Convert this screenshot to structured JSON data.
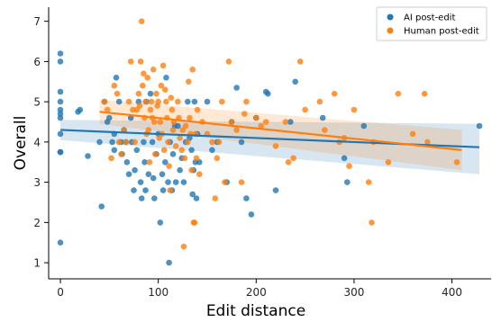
{
  "chart_data": {
    "type": "scatter",
    "xlabel": "Edit distance",
    "ylabel": "Overall",
    "xlim": [
      -12,
      440
    ],
    "ylim": [
      0.6,
      7.35
    ],
    "xticks": [
      0,
      100,
      200,
      300,
      400
    ],
    "yticks": [
      1,
      2,
      3,
      4,
      5,
      6,
      7
    ],
    "legend_position": "top-right",
    "grid": false,
    "series": [
      {
        "name": "AI post-edit",
        "color": "#1f77b4",
        "regression": {
          "x": [
            0,
            428
          ],
          "y": [
            4.3,
            3.87
          ],
          "ci_upper": [
            4.55,
            4.45
          ],
          "ci_lower": [
            4.05,
            3.2
          ]
        },
        "points": [
          [
            0,
            6.2
          ],
          [
            0,
            6.0
          ],
          [
            0,
            5.25
          ],
          [
            0,
            5.0
          ],
          [
            0,
            4.8
          ],
          [
            0,
            4.7
          ],
          [
            0,
            4.6
          ],
          [
            0,
            4.2
          ],
          [
            0,
            3.75
          ],
          [
            0,
            3.75
          ],
          [
            0,
            1.5
          ],
          [
            18,
            4.75
          ],
          [
            20,
            4.8
          ],
          [
            28,
            3.65
          ],
          [
            40,
            4.0
          ],
          [
            42,
            2.4
          ],
          [
            45,
            5.0
          ],
          [
            48,
            4.5
          ],
          [
            50,
            4.6
          ],
          [
            53,
            4.0
          ],
          [
            55,
            4.2
          ],
          [
            55,
            3.8
          ],
          [
            57,
            5.6
          ],
          [
            60,
            5.0
          ],
          [
            62,
            4.0
          ],
          [
            63,
            3.7
          ],
          [
            65,
            4.3
          ],
          [
            67,
            4.0
          ],
          [
            68,
            3.5
          ],
          [
            70,
            3.2
          ],
          [
            72,
            4.6
          ],
          [
            73,
            4.0
          ],
          [
            75,
            2.8
          ],
          [
            76,
            3.3
          ],
          [
            78,
            3.8
          ],
          [
            80,
            5.0
          ],
          [
            82,
            3.0
          ],
          [
            83,
            2.6
          ],
          [
            85,
            4.0
          ],
          [
            86,
            3.5
          ],
          [
            87,
            2.8
          ],
          [
            88,
            5.0
          ],
          [
            90,
            3.2
          ],
          [
            92,
            5.2
          ],
          [
            94,
            4.0
          ],
          [
            95,
            3.1
          ],
          [
            96,
            2.6
          ],
          [
            98,
            3.7
          ],
          [
            100,
            4.2
          ],
          [
            102,
            2.0
          ],
          [
            104,
            3.2
          ],
          [
            105,
            2.8
          ],
          [
            107,
            3.5
          ],
          [
            108,
            5.6
          ],
          [
            110,
            3.0
          ],
          [
            111,
            1.0
          ],
          [
            112,
            4.0
          ],
          [
            114,
            2.8
          ],
          [
            115,
            3.7
          ],
          [
            117,
            4.4
          ],
          [
            118,
            3.0
          ],
          [
            120,
            4.4
          ],
          [
            122,
            3.3
          ],
          [
            124,
            3.6
          ],
          [
            126,
            3.0
          ],
          [
            128,
            4.0
          ],
          [
            130,
            5.0
          ],
          [
            132,
            4.1
          ],
          [
            134,
            3.8
          ],
          [
            135,
            2.7
          ],
          [
            136,
            3.3
          ],
          [
            137,
            5.0
          ],
          [
            138,
            3.5
          ],
          [
            139,
            2.6
          ],
          [
            140,
            4.2
          ],
          [
            142,
            3.5
          ],
          [
            150,
            5.0
          ],
          [
            155,
            3.8
          ],
          [
            160,
            4.0
          ],
          [
            170,
            3.0
          ],
          [
            175,
            4.5
          ],
          [
            180,
            5.35
          ],
          [
            185,
            4.0
          ],
          [
            190,
            2.6
          ],
          [
            195,
            2.2
          ],
          [
            200,
            4.6
          ],
          [
            210,
            5.25
          ],
          [
            212,
            5.2
          ],
          [
            220,
            2.8
          ],
          [
            235,
            4.5
          ],
          [
            240,
            5.5
          ],
          [
            268,
            4.6
          ],
          [
            290,
            3.6
          ],
          [
            293,
            3.0
          ],
          [
            310,
            4.4
          ],
          [
            428,
            4.4
          ]
        ]
      },
      {
        "name": "Human post-edit",
        "color": "#ff7f0e",
        "regression": {
          "x": [
            40,
            410
          ],
          "y": [
            4.75,
            3.8
          ],
          "ci_upper": [
            5.05,
            4.3
          ],
          "ci_lower": [
            4.45,
            3.3
          ]
        },
        "points": [
          [
            45,
            5.0
          ],
          [
            48,
            4.8
          ],
          [
            52,
            3.6
          ],
          [
            55,
            5.4
          ],
          [
            58,
            5.2
          ],
          [
            60,
            4.0
          ],
          [
            62,
            3.7
          ],
          [
            65,
            4.3
          ],
          [
            67,
            4.0
          ],
          [
            70,
            5.0
          ],
          [
            72,
            6.0
          ],
          [
            74,
            4.8
          ],
          [
            76,
            4.0
          ],
          [
            78,
            4.8
          ],
          [
            80,
            5.2
          ],
          [
            81,
            4.9
          ],
          [
            82,
            6.0
          ],
          [
            83,
            7.0
          ],
          [
            84,
            5.4
          ],
          [
            85,
            5.7
          ],
          [
            86,
            4.6
          ],
          [
            87,
            5.0
          ],
          [
            88,
            4.2
          ],
          [
            89,
            5.6
          ],
          [
            90,
            4.3
          ],
          [
            91,
            3.5
          ],
          [
            92,
            4.8
          ],
          [
            93,
            5.0
          ],
          [
            94,
            4.6
          ],
          [
            95,
            5.8
          ],
          [
            96,
            4.5
          ],
          [
            97,
            3.7
          ],
          [
            98,
            5.2
          ],
          [
            99,
            4.9
          ],
          [
            100,
            5.0
          ],
          [
            101,
            4.1
          ],
          [
            102,
            4.5
          ],
          [
            103,
            5.4
          ],
          [
            104,
            4.2
          ],
          [
            105,
            5.9
          ],
          [
            106,
            3.8
          ],
          [
            107,
            5.3
          ],
          [
            108,
            5.0
          ],
          [
            109,
            4.6
          ],
          [
            110,
            4.0
          ],
          [
            111,
            3.4
          ],
          [
            112,
            2.8
          ],
          [
            113,
            5.1
          ],
          [
            114,
            4.8
          ],
          [
            115,
            4.3
          ],
          [
            116,
            4.5
          ],
          [
            118,
            3.9
          ],
          [
            120,
            5.0
          ],
          [
            121,
            4.6
          ],
          [
            122,
            4.1
          ],
          [
            124,
            3.8
          ],
          [
            125,
            4.3
          ],
          [
            126,
            1.4
          ],
          [
            127,
            3.6
          ],
          [
            128,
            4.4
          ],
          [
            130,
            4.0
          ],
          [
            131,
            5.5
          ],
          [
            132,
            4.6
          ],
          [
            133,
            4.2
          ],
          [
            134,
            3.3
          ],
          [
            135,
            5.8
          ],
          [
            136,
            2.0
          ],
          [
            137,
            2.0
          ],
          [
            138,
            4.2
          ],
          [
            139,
            3.6
          ],
          [
            140,
            4.8
          ],
          [
            142,
            3.2
          ],
          [
            145,
            4.5
          ],
          [
            150,
            4.2
          ],
          [
            155,
            4.0
          ],
          [
            158,
            2.6
          ],
          [
            160,
            3.6
          ],
          [
            162,
            4.0
          ],
          [
            165,
            5.0
          ],
          [
            168,
            3.0
          ],
          [
            172,
            6.0
          ],
          [
            175,
            4.5
          ],
          [
            180,
            4.3
          ],
          [
            185,
            3.0
          ],
          [
            188,
            4.7
          ],
          [
            190,
            5.0
          ],
          [
            200,
            4.6
          ],
          [
            205,
            4.4
          ],
          [
            210,
            4.5
          ],
          [
            220,
            3.9
          ],
          [
            230,
            4.5
          ],
          [
            233,
            3.5
          ],
          [
            238,
            3.6
          ],
          [
            245,
            6.0
          ],
          [
            250,
            4.8
          ],
          [
            265,
            5.0
          ],
          [
            270,
            4.3
          ],
          [
            280,
            5.2
          ],
          [
            285,
            4.0
          ],
          [
            290,
            4.1
          ],
          [
            295,
            3.4
          ],
          [
            300,
            4.8
          ],
          [
            315,
            3.0
          ],
          [
            318,
            2.0
          ],
          [
            320,
            4.0
          ],
          [
            335,
            3.5
          ],
          [
            345,
            5.2
          ],
          [
            360,
            4.2
          ],
          [
            372,
            5.2
          ],
          [
            375,
            4.0
          ],
          [
            405,
            3.5
          ]
        ]
      }
    ]
  }
}
